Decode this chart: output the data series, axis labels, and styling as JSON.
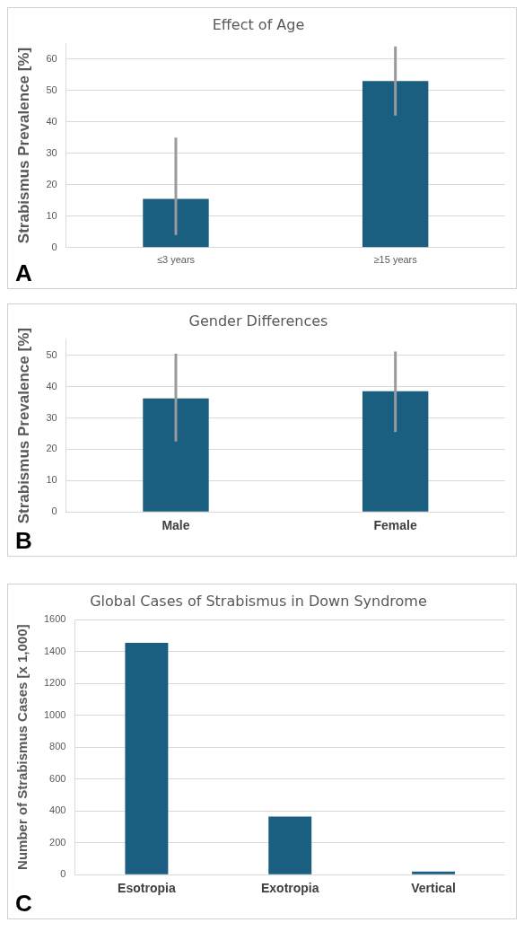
{
  "chart_data": [
    {
      "type": "bar",
      "title": "Effect of Age",
      "ylabel": "Strabismus Prevalence [%]",
      "categories": [
        "≤3 years",
        "≥15 years"
      ],
      "values": [
        15.5,
        53
      ],
      "errors": [
        [
          4,
          35
        ],
        [
          42,
          64
        ]
      ],
      "color": "#1a5e80",
      "ylim": [
        0,
        65
      ],
      "yticks": [
        0,
        10,
        20,
        30,
        40,
        50,
        60
      ],
      "grid": "y",
      "annotations": [
        "A"
      ]
    },
    {
      "type": "bar",
      "title": "Gender Differences",
      "ylabel": "Strabismus Prevalence [%]",
      "categories": [
        "Male",
        "Female"
      ],
      "values": [
        36.2,
        38.5
      ],
      "errors": [
        [
          22.5,
          50.5
        ],
        [
          25.5,
          51.2
        ]
      ],
      "color": "#1a5e80",
      "ylim": [
        0,
        55
      ],
      "yticks": [
        0,
        10,
        20,
        30,
        40,
        50
      ],
      "grid": "y",
      "annotations": [
        "B"
      ]
    },
    {
      "type": "bar",
      "title": "Global Cases of Strabismus in Down Syndrome",
      "ylabel": "Number of Strabismus Cases [x 1,000]",
      "categories": [
        "Esotropia",
        "Exotropia",
        "Vertical"
      ],
      "values": [
        1455,
        365,
        20
      ],
      "color": "#1a5e80",
      "ylim": [
        0,
        1600
      ],
      "yticks": [
        0,
        200,
        400,
        600,
        800,
        1000,
        1200,
        1400,
        1600
      ],
      "grid": "y",
      "annotations": [
        "C"
      ]
    }
  ]
}
